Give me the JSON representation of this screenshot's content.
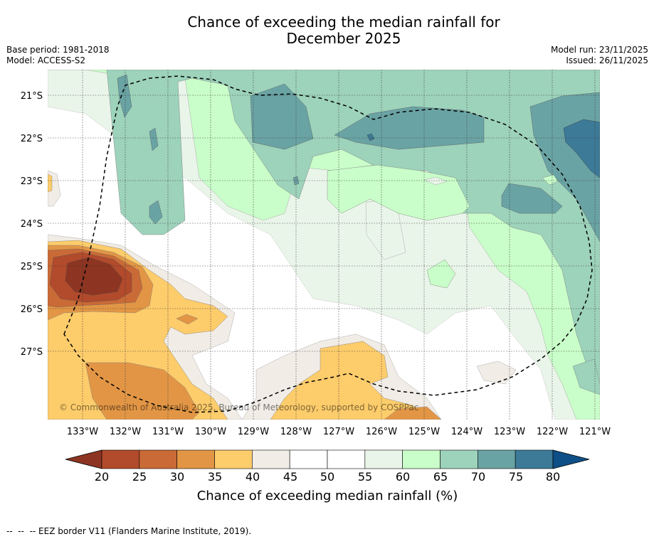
{
  "header": {
    "title_line1": "Chance of exceeding the median rainfall for",
    "title_line2": "December 2025",
    "base_period": "Base period: 1981-2018",
    "model": "Model: ACCESS-S2",
    "model_run": "Model run: 23/11/2025",
    "issued": "Issued: 26/11/2025"
  },
  "map": {
    "lat_labels": [
      "21°S",
      "22°S",
      "23°S",
      "24°S",
      "25°S",
      "26°S",
      "27°S"
    ],
    "lon_labels": [
      "133°W",
      "132°W",
      "131°W",
      "130°W",
      "129°W",
      "128°W",
      "127°W",
      "126°W",
      "125°W",
      "124°W",
      "123°W",
      "122°W",
      "121°W"
    ],
    "copyright": "© Commonwealth of Australia 2025, Bureau of Meteorology, supported by COSPPac"
  },
  "chart_data": {
    "type": "heatmap",
    "title": "Chance of exceeding the median rainfall for December 2025",
    "variable": "Chance of exceeding median rainfall (%)",
    "lon_range": [
      -133.8,
      -120.9
    ],
    "lat_range": [
      -28.9,
      -20.4
    ],
    "contour_levels": [
      20,
      25,
      30,
      35,
      40,
      45,
      50,
      55,
      60,
      65,
      70,
      75,
      80
    ],
    "bin_colors": [
      "#8d3522",
      "#b24a2c",
      "#ca6a36",
      "#e29645",
      "#fdcc6b",
      "#f1ede6",
      "#ffffff",
      "#ffffff",
      "#eaf5ea",
      "#c9fdc9",
      "#9dd2bb",
      "#6aa3a4",
      "#3d7a98"
    ],
    "extend_low_color": "#8d3522",
    "extend_high_color": "#0f4f87",
    "regions_description": [
      {
        "lon": -132.6,
        "lat": -25.3,
        "value": 22
      },
      {
        "lon": -131.0,
        "lat": -28.4,
        "value": 32
      },
      {
        "lon": -127.0,
        "lat": -28.0,
        "value": 37
      },
      {
        "lon": -131.5,
        "lat": -22.5,
        "value": 68
      },
      {
        "lon": -128.0,
        "lat": -21.5,
        "value": 72
      },
      {
        "lon": -122.0,
        "lat": -21.8,
        "value": 77
      },
      {
        "lon": -126.0,
        "lat": -25.5,
        "value": 52
      }
    ]
  },
  "colorbar": {
    "ticks": [
      "20",
      "25",
      "30",
      "35",
      "40",
      "45",
      "50",
      "55",
      "60",
      "65",
      "70",
      "75",
      "80"
    ],
    "label": "Chance of exceeding median rainfall (%)"
  },
  "footer": {
    "legend_text": "--  --  -- EEZ border V11 (Flanders Marine Institute, 2019)."
  }
}
